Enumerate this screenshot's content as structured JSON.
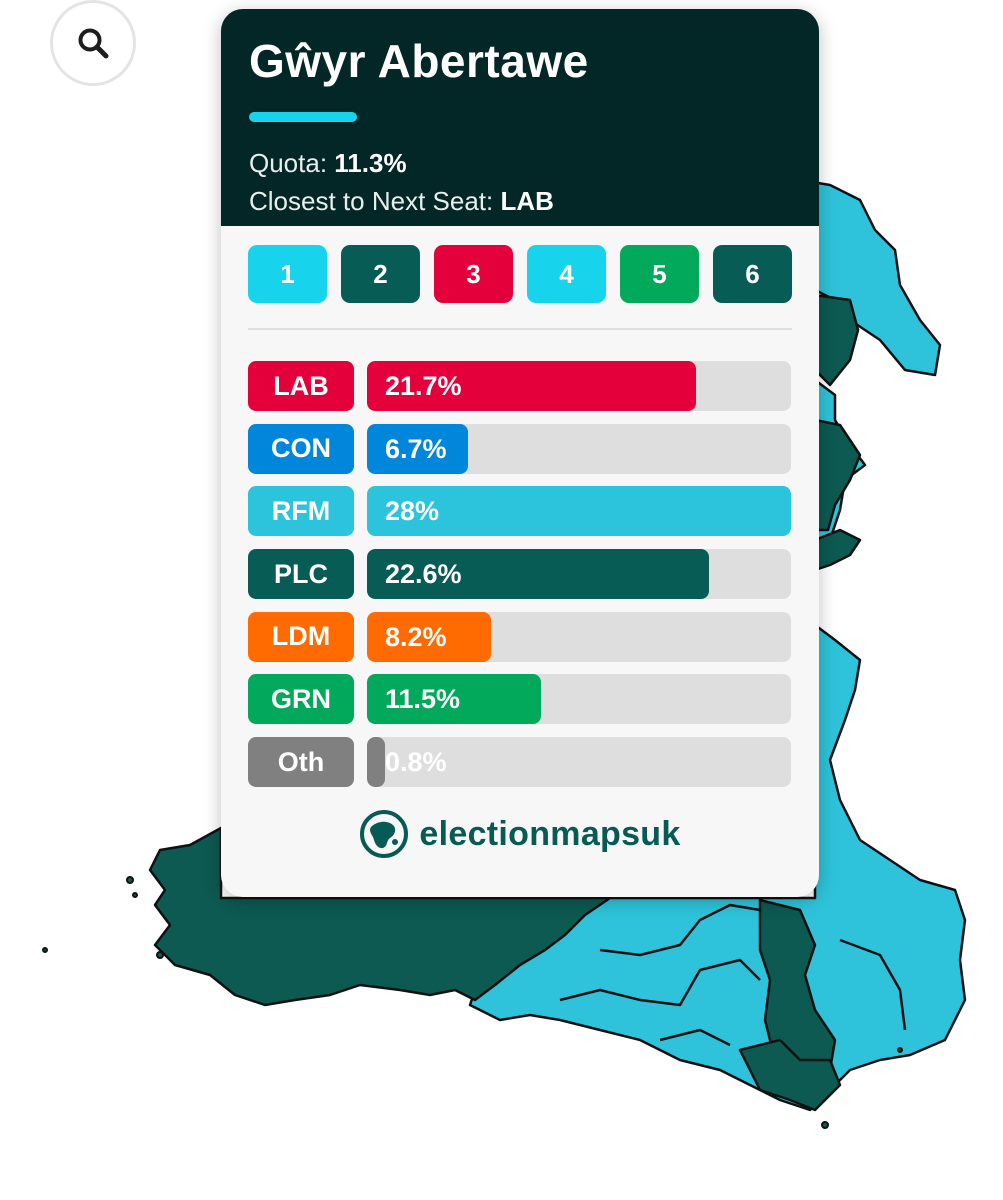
{
  "colors": {
    "labour": "#e4003b",
    "conservative": "#0087dc",
    "reform": "#2bc4dc",
    "plaid": "#075c55",
    "libdem": "#ff6b00",
    "green": "#02a95b",
    "other": "#808080",
    "header_bg": "#032726",
    "map_dark": "#0c5a51",
    "map_light": "#2ec3da"
  },
  "card": {
    "title": "Gŵyr Abertawe",
    "quota_label": "Quota: ",
    "quota_value": "11.3%",
    "closest_label": "Closest to Next Seat: ",
    "closest_value": "LAB"
  },
  "seats": [
    {
      "label": "1",
      "color": "#18d3ec"
    },
    {
      "label": "2",
      "color": "#075c55"
    },
    {
      "label": "3",
      "color": "#e4003b"
    },
    {
      "label": "4",
      "color": "#18d3ec"
    },
    {
      "label": "5",
      "color": "#02a95b"
    },
    {
      "label": "6",
      "color": "#075c55"
    }
  ],
  "results": [
    {
      "party": "LAB",
      "value": 21.7,
      "label": "21.7%",
      "color": "#e4003b"
    },
    {
      "party": "CON",
      "value": 6.7,
      "label": "6.7%",
      "color": "#0087dc"
    },
    {
      "party": "RFM",
      "value": 28,
      "label": "28%",
      "color": "#2bc4dc"
    },
    {
      "party": "PLC",
      "value": 22.6,
      "label": "22.6%",
      "color": "#075c55"
    },
    {
      "party": "LDM",
      "value": 8.2,
      "label": "8.2%",
      "color": "#ff6b00"
    },
    {
      "party": "GRN",
      "value": 11.5,
      "label": "11.5%",
      "color": "#02a95b"
    },
    {
      "party": "Oth",
      "value": 0.8,
      "label": "0.8%",
      "color": "#808080"
    }
  ],
  "results_max": 28,
  "brand": {
    "name": "electionmapsuk"
  },
  "icons": {
    "search": "search-icon",
    "brand_logo": "globe-logo-icon"
  }
}
